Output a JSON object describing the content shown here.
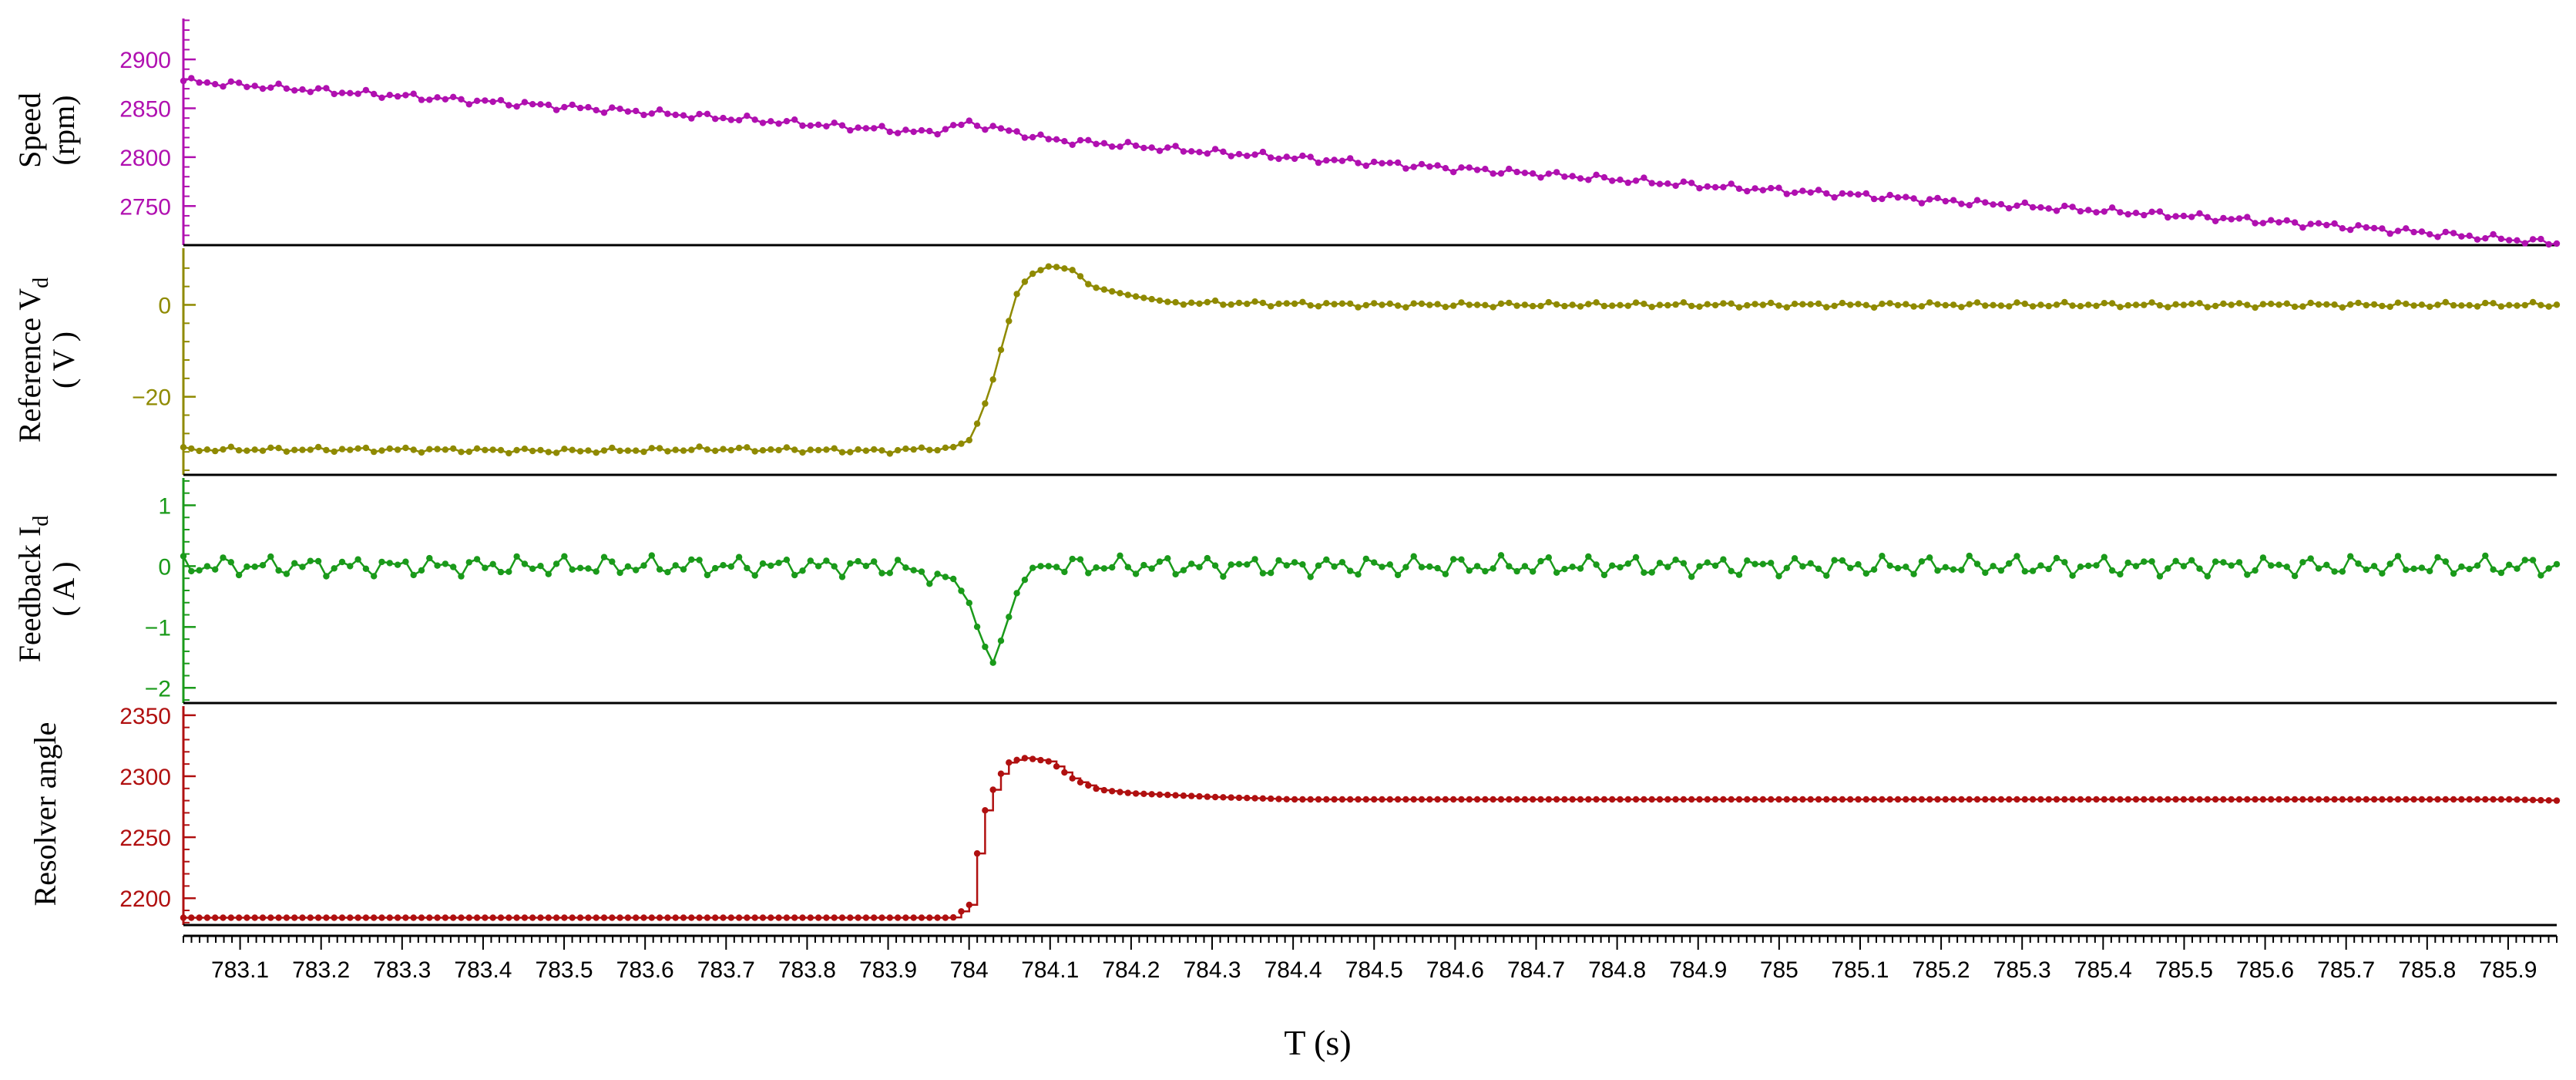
{
  "chart_data": {
    "type": "line",
    "x_axis": {
      "label": "T (s)",
      "range": [
        783.03,
        785.96
      ],
      "tick_labels": [
        "783.1",
        "783.2",
        "783.3",
        "783.4",
        "783.5",
        "783.6",
        "783.7",
        "783.8",
        "783.9",
        "784",
        "784.1",
        "784.2",
        "784.3",
        "784.4",
        "784.5",
        "784.6",
        "784.7",
        "784.8",
        "784.9",
        "785",
        "785.1",
        "785.2",
        "785.3",
        "785.4",
        "785.5",
        "785.6",
        "785.7",
        "785.8",
        "785.9"
      ],
      "tick_values": [
        783.1,
        783.2,
        783.3,
        783.4,
        783.5,
        783.6,
        783.7,
        783.8,
        783.9,
        784.0,
        784.1,
        784.2,
        784.3,
        784.4,
        784.5,
        784.6,
        784.7,
        784.8,
        784.9,
        785.0,
        785.1,
        785.2,
        785.3,
        785.4,
        785.5,
        785.6,
        785.7,
        785.8,
        785.9
      ]
    },
    "grid": false,
    "legend": "none",
    "panels": [
      {
        "id": "speed",
        "ylabel_lines": [
          "Speed",
          "(rpm)"
        ],
        "color": "#b010b0",
        "ylim": [
          2710,
          2945
        ],
        "yticks": [
          2750,
          2800,
          2850,
          2900
        ],
        "ytick_labels": [
          "2750",
          "2800",
          "2850",
          "2900"
        ],
        "step": false,
        "points": [
          [
            783.03,
            2878
          ],
          [
            783.2,
            2868
          ],
          [
            783.4,
            2857
          ],
          [
            783.6,
            2846
          ],
          [
            783.8,
            2834
          ],
          [
            783.95,
            2825
          ],
          [
            784.0,
            2835
          ],
          [
            784.1,
            2818
          ],
          [
            784.3,
            2805
          ],
          [
            784.5,
            2794
          ],
          [
            784.7,
            2783
          ],
          [
            784.9,
            2771
          ],
          [
            785.1,
            2761
          ],
          [
            785.3,
            2750
          ],
          [
            785.5,
            2740
          ],
          [
            785.7,
            2729
          ],
          [
            785.9,
            2716
          ],
          [
            785.96,
            2712
          ]
        ]
      },
      {
        "id": "reference-vd",
        "ylabel_lines": [
          "Reference V",
          "( V )"
        ],
        "ylabel_subscript": "d",
        "color": "#8f8a00",
        "ylim": [
          -37,
          13
        ],
        "yticks": [
          -20,
          0
        ],
        "ytick_labels": [
          "−20",
          "0"
        ],
        "step": false,
        "points": [
          [
            783.03,
            -31.5
          ],
          [
            783.3,
            -31.5
          ],
          [
            783.5,
            -31.8
          ],
          [
            783.7,
            -31.4
          ],
          [
            783.9,
            -31.8
          ],
          [
            783.98,
            -31
          ],
          [
            784.0,
            -29.5
          ],
          [
            784.015,
            -24
          ],
          [
            784.03,
            -16
          ],
          [
            784.045,
            -6
          ],
          [
            784.06,
            3
          ],
          [
            784.075,
            6.5
          ],
          [
            784.1,
            8.5
          ],
          [
            784.13,
            7.5
          ],
          [
            784.15,
            4
          ],
          [
            784.2,
            2
          ],
          [
            784.25,
            0.5
          ],
          [
            784.5,
            0
          ],
          [
            785.0,
            0
          ],
          [
            785.5,
            0
          ],
          [
            785.96,
            0
          ]
        ]
      },
      {
        "id": "feedback-id",
        "ylabel_lines": [
          "Feedback I",
          "( A )"
        ],
        "ylabel_subscript": "d",
        "color": "#1a9a1a",
        "ylim": [
          -2.25,
          1.5
        ],
        "yticks": [
          -2,
          -1,
          0,
          1
        ],
        "ytick_labels": [
          "−2",
          "−1",
          "0",
          "1"
        ],
        "step": false,
        "points": [
          [
            783.03,
            0
          ],
          [
            783.5,
            0
          ],
          [
            783.9,
            0
          ],
          [
            783.98,
            -0.2
          ],
          [
            784.0,
            -0.6
          ],
          [
            784.015,
            -1.2
          ],
          [
            784.03,
            -1.6
          ],
          [
            784.045,
            -1.0
          ],
          [
            784.06,
            -0.4
          ],
          [
            784.08,
            0
          ],
          [
            784.5,
            0
          ],
          [
            785.0,
            0
          ],
          [
            785.5,
            0
          ],
          [
            785.96,
            0
          ]
        ]
      },
      {
        "id": "resolver-angle",
        "ylabel_lines": [
          "Resolver angle"
        ],
        "color": "#b01010",
        "ylim": [
          2178,
          2360
        ],
        "yticks": [
          2200,
          2250,
          2300,
          2350
        ],
        "ytick_labels": [
          "2200",
          "2250",
          "2300",
          "2350"
        ],
        "step": true,
        "points": [
          [
            783.03,
            2184
          ],
          [
            783.98,
            2184
          ],
          [
            784.0,
            2194
          ],
          [
            784.01,
            2237
          ],
          [
            784.02,
            2273
          ],
          [
            784.035,
            2298
          ],
          [
            784.05,
            2312
          ],
          [
            784.07,
            2315
          ],
          [
            784.1,
            2312
          ],
          [
            784.13,
            2297
          ],
          [
            784.16,
            2289
          ],
          [
            784.2,
            2286
          ],
          [
            784.3,
            2283
          ],
          [
            784.4,
            2281
          ],
          [
            785.0,
            2281
          ],
          [
            785.9,
            2281
          ],
          [
            785.96,
            2280
          ]
        ]
      }
    ]
  }
}
